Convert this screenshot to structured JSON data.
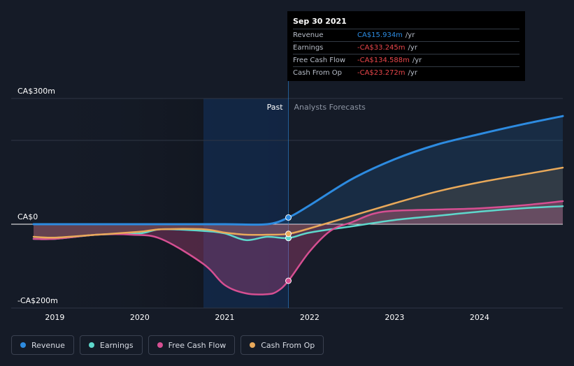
{
  "chart_data": {
    "type": "area",
    "currency": "CA$",
    "y_ticks": [
      {
        "value": 300,
        "label": "CA$300m"
      },
      {
        "value": 0,
        "label": "CA$0"
      },
      {
        "value": -200,
        "label": "-CA$200m"
      }
    ],
    "x_ticks": [
      "2019",
      "2020",
      "2021",
      "2022",
      "2023",
      "2024"
    ],
    "x_range": [
      2018.75,
      2024.98
    ],
    "y_range": [
      -200,
      300
    ],
    "past_label": "Past",
    "forecast_label": "Analysts Forecasts",
    "divider_x": 2021.75,
    "series": [
      {
        "name": "Revenue",
        "color": "#2d8be0",
        "x": [
          2018.75,
          2019.5,
          2020.25,
          2021.0,
          2021.5,
          2021.75,
          2022.0,
          2022.5,
          2023.0,
          2023.5,
          2024.0,
          2024.5,
          2024.98
        ],
        "y": [
          0,
          0,
          0,
          0,
          0,
          16,
          45,
          108,
          155,
          190,
          215,
          238,
          258
        ]
      },
      {
        "name": "Earnings",
        "color": "#5ed8cc",
        "x": [
          2018.75,
          2019.0,
          2019.5,
          2020.0,
          2020.25,
          2020.75,
          2021.0,
          2021.25,
          2021.5,
          2021.75,
          2022.0,
          2022.5,
          2023.0,
          2023.5,
          2024.0,
          2024.5,
          2024.98
        ],
        "y": [
          -35,
          -35,
          -25,
          -22,
          -12,
          -16,
          -22,
          -38,
          -30,
          -33,
          -20,
          -5,
          10,
          20,
          30,
          38,
          43
        ]
      },
      {
        "name": "Free Cash Flow",
        "color": "#d64f92",
        "x": [
          2018.75,
          2019.0,
          2019.5,
          2019.9,
          2020.25,
          2020.75,
          2021.0,
          2021.25,
          2021.5,
          2021.62,
          2021.75,
          2022.0,
          2022.25,
          2022.5,
          2022.75,
          2023.0,
          2023.5,
          2024.0,
          2024.5,
          2024.98
        ],
        "y": [
          -35,
          -35,
          -25,
          -25,
          -35,
          -95,
          -145,
          -165,
          -167,
          -160,
          -135,
          -65,
          -15,
          5,
          25,
          32,
          35,
          38,
          45,
          55
        ]
      },
      {
        "name": "Cash From Op",
        "color": "#e9a95a",
        "x": [
          2018.75,
          2019.0,
          2019.5,
          2020.0,
          2020.25,
          2020.75,
          2021.0,
          2021.25,
          2021.5,
          2021.75,
          2022.0,
          2022.5,
          2023.0,
          2023.5,
          2024.0,
          2024.5,
          2024.98
        ],
        "y": [
          -30,
          -32,
          -25,
          -18,
          -12,
          -12,
          -20,
          -25,
          -25,
          -23,
          -10,
          20,
          50,
          78,
          100,
          118,
          135
        ]
      }
    ]
  },
  "tooltip": {
    "date": "Sep 30 2021",
    "rows": [
      {
        "label": "Revenue",
        "value": "CA$15.934m",
        "unit": "/yr",
        "color": "#2d8be0"
      },
      {
        "label": "Earnings",
        "value": "-CA$33.245m",
        "unit": "/yr",
        "color": "#e8464a"
      },
      {
        "label": "Free Cash Flow",
        "value": "-CA$134.588m",
        "unit": "/yr",
        "color": "#e8464a"
      },
      {
        "label": "Cash From Op",
        "value": "-CA$23.272m",
        "unit": "/yr",
        "color": "#e8464a"
      }
    ]
  },
  "legend": [
    {
      "label": "Revenue",
      "color": "#2d8be0"
    },
    {
      "label": "Earnings",
      "color": "#5ed8cc"
    },
    {
      "label": "Free Cash Flow",
      "color": "#d64f92"
    },
    {
      "label": "Cash From Op",
      "color": "#e9a95a"
    }
  ]
}
